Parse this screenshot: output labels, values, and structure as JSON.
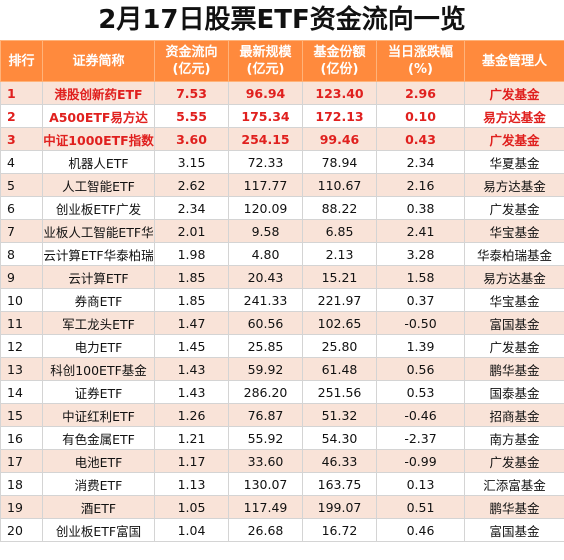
{
  "title": "2月17日股票ETF资金流向一览",
  "headers": {
    "rank": "排行",
    "name": "证券简称",
    "flow_l1": "资金流向",
    "flow_l2": "(亿元)",
    "scale_l1": "最新规模",
    "scale_l2": "(亿元)",
    "share_l1": "基金份额",
    "share_l2": "(亿份)",
    "change_l1": "当日涨跌幅",
    "change_l2": "(%)",
    "manager": "基金管理人"
  },
  "rows": [
    {
      "rank": "1",
      "name": "港股创新药ETF",
      "flow": "7.53",
      "scale": "96.94",
      "share": "123.40",
      "change": "2.96",
      "manager": "广发基金"
    },
    {
      "rank": "2",
      "name": "A500ETF易方达",
      "flow": "5.55",
      "scale": "175.34",
      "share": "172.13",
      "change": "0.10",
      "manager": "易方达基金"
    },
    {
      "rank": "3",
      "name": "中证1000ETF指数",
      "flow": "3.60",
      "scale": "254.15",
      "share": "99.46",
      "change": "0.43",
      "manager": "广发基金"
    },
    {
      "rank": "4",
      "name": "机器人ETF",
      "flow": "3.15",
      "scale": "72.33",
      "share": "78.94",
      "change": "2.34",
      "manager": "华夏基金"
    },
    {
      "rank": "5",
      "name": "人工智能ETF",
      "flow": "2.62",
      "scale": "117.77",
      "share": "110.67",
      "change": "2.16",
      "manager": "易方达基金"
    },
    {
      "rank": "6",
      "name": "创业板ETF广发",
      "flow": "2.34",
      "scale": "120.09",
      "share": "88.22",
      "change": "0.38",
      "manager": "广发基金"
    },
    {
      "rank": "7",
      "name": "业板人工智能ETF华",
      "flow": "2.01",
      "scale": "9.58",
      "share": "6.85",
      "change": "2.41",
      "manager": "华宝基金"
    },
    {
      "rank": "8",
      "name": "云计算ETF华泰柏瑞",
      "flow": "1.98",
      "scale": "4.80",
      "share": "2.13",
      "change": "3.28",
      "manager": "华泰柏瑞基金"
    },
    {
      "rank": "9",
      "name": "云计算ETF",
      "flow": "1.85",
      "scale": "20.43",
      "share": "15.21",
      "change": "1.58",
      "manager": "易方达基金"
    },
    {
      "rank": "10",
      "name": "券商ETF",
      "flow": "1.85",
      "scale": "241.33",
      "share": "221.97",
      "change": "0.37",
      "manager": "华宝基金"
    },
    {
      "rank": "11",
      "name": "军工龙头ETF",
      "flow": "1.47",
      "scale": "60.56",
      "share": "102.65",
      "change": "-0.50",
      "manager": "富国基金"
    },
    {
      "rank": "12",
      "name": "电力ETF",
      "flow": "1.45",
      "scale": "25.85",
      "share": "25.80",
      "change": "1.39",
      "manager": "广发基金"
    },
    {
      "rank": "13",
      "name": "科创100ETF基金",
      "flow": "1.43",
      "scale": "59.92",
      "share": "61.48",
      "change": "0.56",
      "manager": "鹏华基金"
    },
    {
      "rank": "14",
      "name": "证券ETF",
      "flow": "1.43",
      "scale": "286.20",
      "share": "251.56",
      "change": "0.53",
      "manager": "国泰基金"
    },
    {
      "rank": "15",
      "name": "中证红利ETF",
      "flow": "1.26",
      "scale": "76.87",
      "share": "51.32",
      "change": "-0.46",
      "manager": "招商基金"
    },
    {
      "rank": "16",
      "name": "有色金属ETF",
      "flow": "1.21",
      "scale": "55.92",
      "share": "54.30",
      "change": "-2.37",
      "manager": "南方基金"
    },
    {
      "rank": "17",
      "name": "电池ETF",
      "flow": "1.17",
      "scale": "33.60",
      "share": "46.33",
      "change": "-0.99",
      "manager": "广发基金"
    },
    {
      "rank": "18",
      "name": "消费ETF",
      "flow": "1.13",
      "scale": "130.07",
      "share": "163.75",
      "change": "0.13",
      "manager": "汇添富基金"
    },
    {
      "rank": "19",
      "name": "酒ETF",
      "flow": "1.05",
      "scale": "117.49",
      "share": "199.07",
      "change": "0.51",
      "manager": "鹏华基金"
    },
    {
      "rank": "20",
      "name": "创业板ETF富国",
      "flow": "1.04",
      "scale": "26.68",
      "share": "16.72",
      "change": "0.46",
      "manager": "富国基金"
    }
  ]
}
